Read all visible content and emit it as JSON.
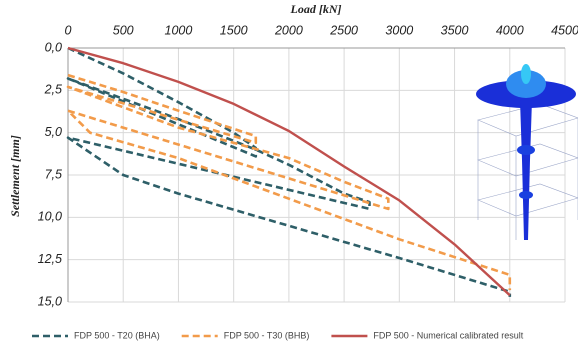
{
  "chart_data": {
    "type": "line",
    "x_label": "Load [kN]",
    "y_label": "Settlement [mm]",
    "xlim": [
      0,
      4500
    ],
    "xticks": [
      0,
      500,
      1000,
      1500,
      2000,
      2500,
      3000,
      3500,
      4000,
      4500
    ],
    "ylim": [
      0,
      15
    ],
    "yticks": [
      {
        "value": 0,
        "label": "0,0"
      },
      {
        "value": 2.5,
        "label": "2,5"
      },
      {
        "value": 5,
        "label": "5,0"
      },
      {
        "value": 7.5,
        "label": "7,5"
      },
      {
        "value": 10,
        "label": "10,0"
      },
      {
        "value": 12.5,
        "label": "12,5"
      },
      {
        "value": 15,
        "label": "15,0"
      }
    ],
    "y_inverted": true,
    "x_axis_top": true,
    "grid": true,
    "series": [
      {
        "name": "FDP 500 - T20 (BHA)",
        "color": "#2e5f68",
        "linestyle": "dashed",
        "x": [
          0,
          500,
          1000,
          1500,
          1700,
          1700,
          0,
          1000,
          1700,
          2000,
          2500,
          2730,
          2730,
          0,
          500,
          1000,
          2000,
          3000,
          4000,
          4000
        ],
        "values": [
          0,
          1.5,
          3.2,
          5.0,
          5.9,
          6.4,
          1.8,
          4.2,
          6.0,
          6.9,
          8.6,
          9.1,
          9.5,
          5.3,
          7.5,
          8.6,
          10.5,
          12.4,
          14.4,
          14.7
        ]
      },
      {
        "name": "FDP 500 - T30 (BHB)",
        "color": "#f29b4a",
        "linestyle": "dashed",
        "x": [
          0,
          500,
          1000,
          1700,
          1700,
          0,
          1000,
          2000,
          2500,
          2900,
          2900,
          0,
          200,
          1000,
          2000,
          3000,
          4000,
          4000
        ],
        "values": [
          1.6,
          2.6,
          3.7,
          5.2,
          5.6,
          2.3,
          4.7,
          6.5,
          7.9,
          8.9,
          9.5,
          3.7,
          5.0,
          6.5,
          8.9,
          11.3,
          13.4,
          14.3
        ]
      },
      {
        "name": "FDP 500 - Numerical calibrated result",
        "color": "#c0504d",
        "linestyle": "solid",
        "x": [
          0,
          500,
          1000,
          1500,
          2000,
          2500,
          3000,
          3500,
          4000
        ],
        "values": [
          0,
          0.9,
          2.0,
          3.3,
          4.9,
          7.0,
          9.0,
          11.6,
          14.6
        ]
      }
    ]
  }
}
